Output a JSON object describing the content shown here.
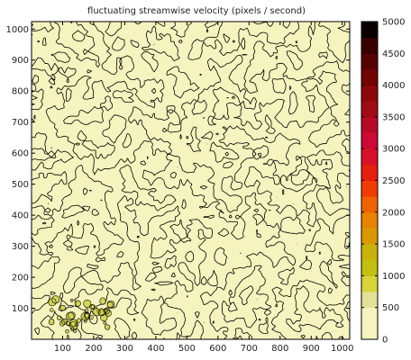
{
  "chart_data": {
    "type": "heatmap",
    "title": "fluctuating streamwise velocity  (pixels / second)",
    "xlabel": "",
    "ylabel": "",
    "xlim": [
      0,
      1024
    ],
    "ylim": [
      0,
      1024
    ],
    "x_ticks": [
      100,
      200,
      300,
      400,
      500,
      600,
      700,
      800,
      900,
      1000
    ],
    "y_ticks": [
      100,
      200,
      300,
      400,
      500,
      600,
      700,
      800,
      900,
      1000
    ],
    "colorbar": {
      "range": [
        0,
        5000
      ],
      "ticks": [
        0,
        500,
        1000,
        1500,
        2000,
        2500,
        3000,
        3500,
        4000,
        4500,
        5000
      ],
      "levels": [
        {
          "from": 0,
          "to": 500,
          "color": "#f5f3be"
        },
        {
          "from": 500,
          "to": 750,
          "color": "#e3e09a"
        },
        {
          "from": 750,
          "to": 1000,
          "color": "#d6d437"
        },
        {
          "from": 1000,
          "to": 1250,
          "color": "#c2c010"
        },
        {
          "from": 1250,
          "to": 1500,
          "color": "#c9b20a"
        },
        {
          "from": 1500,
          "to": 1750,
          "color": "#d99a00"
        },
        {
          "from": 1750,
          "to": 2000,
          "color": "#e88200"
        },
        {
          "from": 2000,
          "to": 2250,
          "color": "#ef6200"
        },
        {
          "from": 2250,
          "to": 2500,
          "color": "#f03c00"
        },
        {
          "from": 2500,
          "to": 2750,
          "color": "#e61e10"
        },
        {
          "from": 2750,
          "to": 3000,
          "color": "#d8102a"
        },
        {
          "from": 3000,
          "to": 3250,
          "color": "#cc0a35"
        },
        {
          "from": 3250,
          "to": 3500,
          "color": "#b80a28"
        },
        {
          "from": 3500,
          "to": 3750,
          "color": "#a00c14"
        },
        {
          "from": 3750,
          "to": 4000,
          "color": "#8c0808"
        },
        {
          "from": 4000,
          "to": 4250,
          "color": "#720404"
        },
        {
          "from": 4250,
          "to": 4500,
          "color": "#560202"
        },
        {
          "from": 4500,
          "to": 4750,
          "color": "#380101"
        },
        {
          "from": 4750,
          "to": 5000,
          "color": "#0a0000"
        }
      ]
    },
    "field": {
      "description_values": "velocity field mostly 0-500 level with scattered contour lines",
      "background_color": "#f5f3be",
      "contour_color": "#000000",
      "highlight_color": "#c2c010"
    }
  }
}
